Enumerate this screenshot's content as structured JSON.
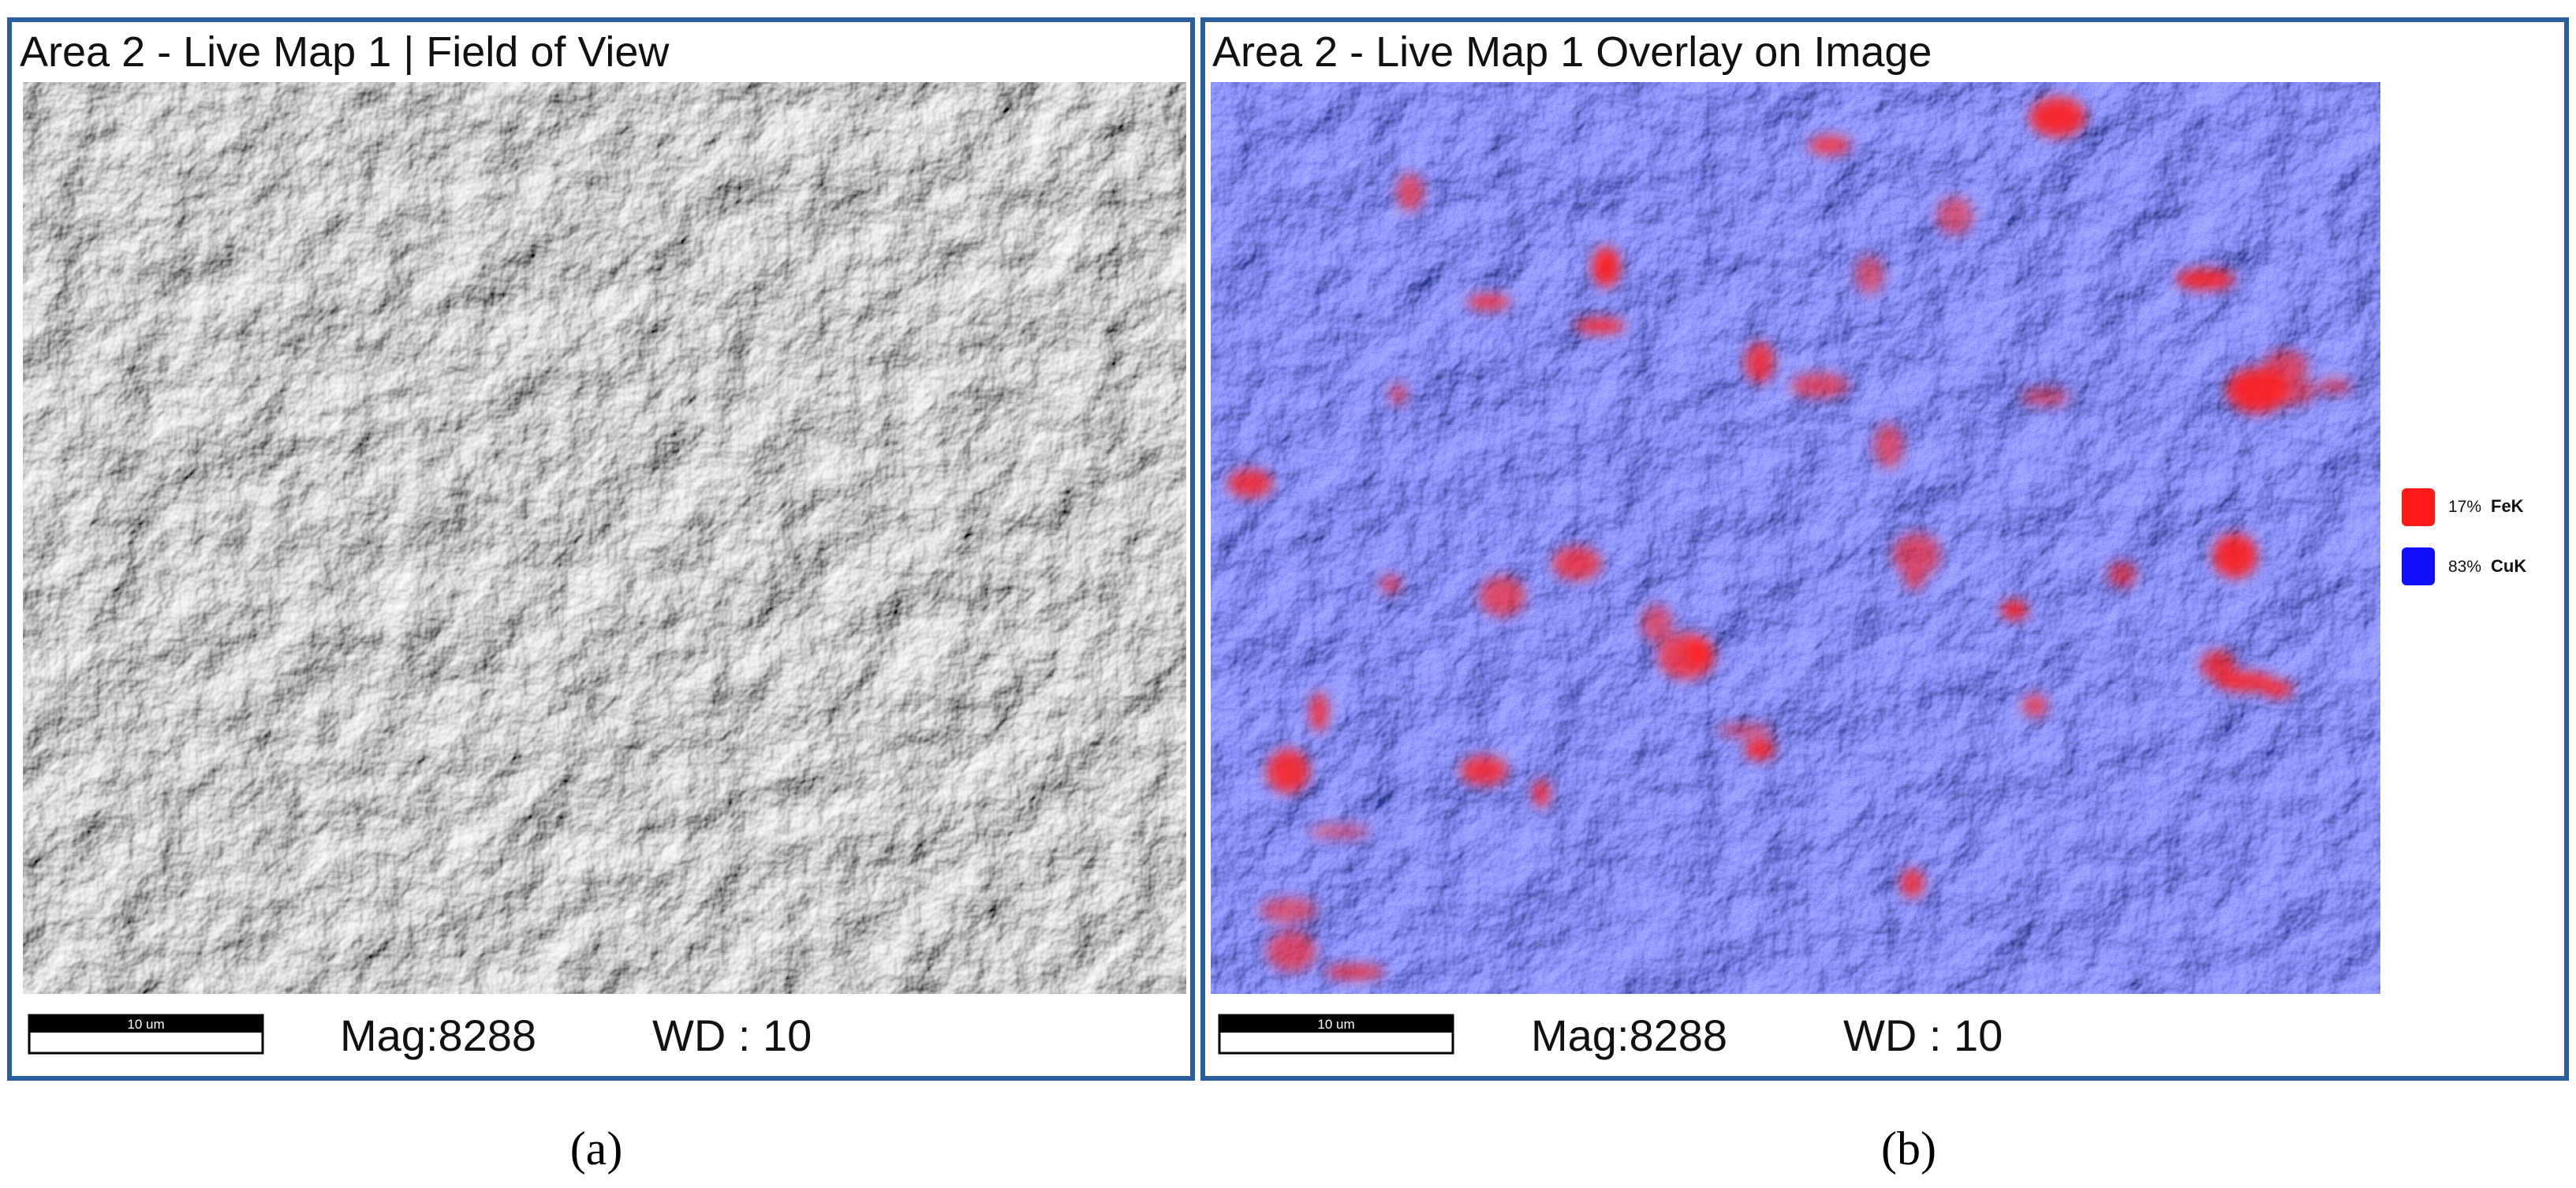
{
  "panels": [
    {
      "title": "Area 2 - Live Map 1 | Field of View",
      "scale_bar": "10 um",
      "mag": "Mag:8288",
      "wd": "WD : 10",
      "caption": "(a)"
    },
    {
      "title": "Area 2 - Live Map 1 Overlay on Image",
      "scale_bar": "10 um",
      "mag": "Mag:8288",
      "wd": "WD : 10",
      "caption": "(b)",
      "legend": [
        {
          "percent": "17%",
          "element": "FeK"
        },
        {
          "percent": "83%",
          "element": "CuK"
        }
      ]
    }
  ]
}
